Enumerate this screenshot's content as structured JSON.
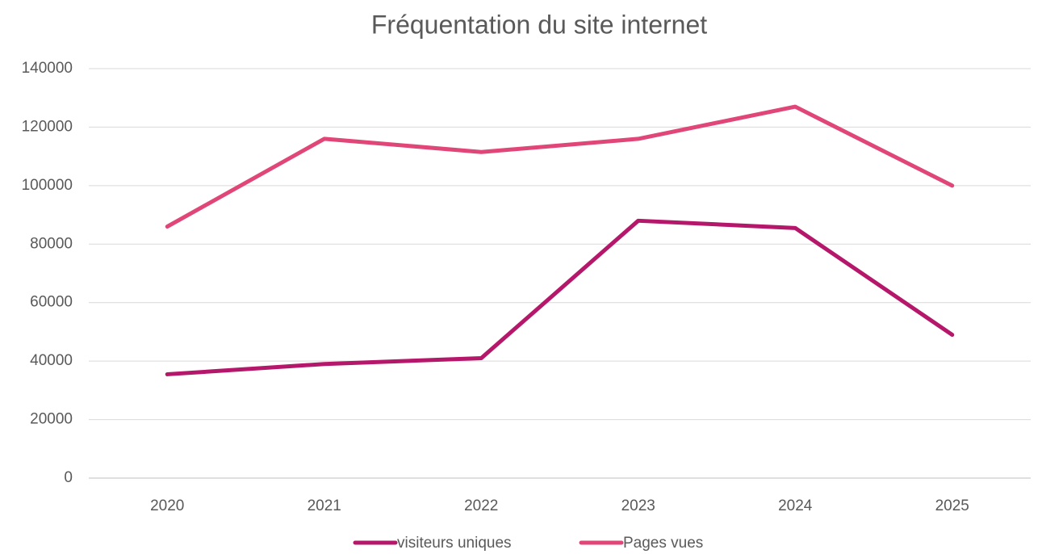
{
  "chart_data": {
    "type": "line",
    "title": "Fréquentation du site internet",
    "categories": [
      "2020",
      "2021",
      "2022",
      "2023",
      "2024",
      "2025"
    ],
    "series": [
      {
        "name": "visiteurs uniques",
        "color": "#b5176a",
        "values": [
          35500,
          39000,
          41000,
          88000,
          85500,
          49000
        ]
      },
      {
        "name": "Pages vues",
        "color": "#e04677",
        "values": [
          86000,
          116000,
          111500,
          116000,
          127000,
          100000
        ]
      }
    ],
    "ylim": [
      0,
      140000
    ],
    "yticks": [
      0,
      20000,
      40000,
      60000,
      80000,
      100000,
      120000,
      140000
    ],
    "grid": true,
    "legend": "bottom"
  }
}
